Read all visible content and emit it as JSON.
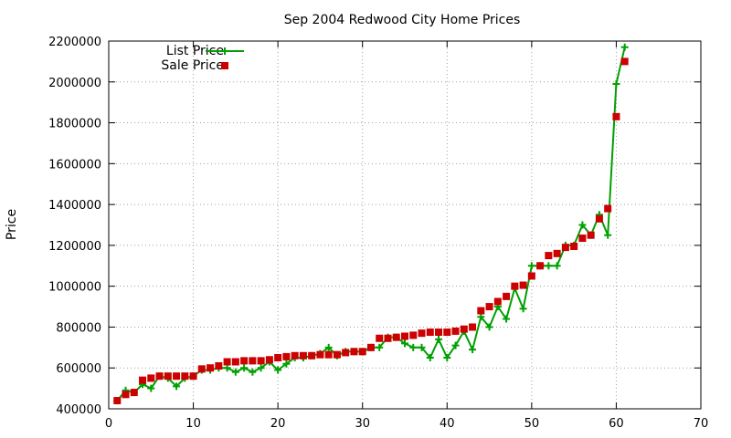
{
  "chart_data": {
    "type": "line",
    "title": "Sep 2004 Redwood City Home Prices",
    "xlabel": "",
    "ylabel": "Price",
    "xlim": [
      0,
      70
    ],
    "ylim": [
      400000,
      2200000
    ],
    "x_ticks": [
      0,
      10,
      20,
      30,
      40,
      50,
      60,
      70
    ],
    "y_ticks": [
      400000,
      600000,
      800000,
      1000000,
      1200000,
      1400000,
      1600000,
      1800000,
      2000000,
      2200000
    ],
    "grid": true,
    "legend_position": "top-left",
    "series": [
      {
        "name": "List Price",
        "style": "lines+points",
        "color": "#00a000",
        "values": [
          [
            1,
            440000
          ],
          [
            2,
            490000
          ],
          [
            3,
            480000
          ],
          [
            4,
            520000
          ],
          [
            5,
            500000
          ],
          [
            6,
            560000
          ],
          [
            7,
            550000
          ],
          [
            8,
            510000
          ],
          [
            9,
            550000
          ],
          [
            10,
            560000
          ],
          [
            11,
            590000
          ],
          [
            12,
            590000
          ],
          [
            13,
            600000
          ],
          [
            14,
            600000
          ],
          [
            15,
            580000
          ],
          [
            16,
            600000
          ],
          [
            17,
            580000
          ],
          [
            18,
            600000
          ],
          [
            19,
            630000
          ],
          [
            20,
            590000
          ],
          [
            21,
            620000
          ],
          [
            22,
            650000
          ],
          [
            23,
            650000
          ],
          [
            24,
            660000
          ],
          [
            25,
            670000
          ],
          [
            26,
            700000
          ],
          [
            27,
            660000
          ],
          [
            28,
            680000
          ],
          [
            29,
            680000
          ],
          [
            30,
            680000
          ],
          [
            31,
            700000
          ],
          [
            32,
            700000
          ],
          [
            33,
            750000
          ],
          [
            34,
            750000
          ],
          [
            35,
            720000
          ],
          [
            36,
            700000
          ],
          [
            37,
            700000
          ],
          [
            38,
            650000
          ],
          [
            39,
            740000
          ],
          [
            40,
            650000
          ],
          [
            41,
            710000
          ],
          [
            42,
            780000
          ],
          [
            43,
            690000
          ],
          [
            44,
            850000
          ],
          [
            45,
            800000
          ],
          [
            46,
            900000
          ],
          [
            47,
            840000
          ],
          [
            48,
            990000
          ],
          [
            49,
            890000
          ],
          [
            50,
            1100000
          ],
          [
            51,
            1100000
          ],
          [
            52,
            1100000
          ],
          [
            53,
            1100000
          ],
          [
            54,
            1200000
          ],
          [
            55,
            1200000
          ],
          [
            56,
            1300000
          ],
          [
            57,
            1250000
          ],
          [
            58,
            1350000
          ],
          [
            59,
            1250000
          ],
          [
            60,
            1990000
          ],
          [
            61,
            2170000
          ]
        ]
      },
      {
        "name": "Sale Price",
        "style": "points",
        "color": "#cc0000",
        "values": [
          [
            1,
            440000
          ],
          [
            2,
            470000
          ],
          [
            3,
            480000
          ],
          [
            4,
            540000
          ],
          [
            5,
            550000
          ],
          [
            6,
            560000
          ],
          [
            7,
            560000
          ],
          [
            8,
            560000
          ],
          [
            9,
            560000
          ],
          [
            10,
            560000
          ],
          [
            11,
            595000
          ],
          [
            12,
            600000
          ],
          [
            13,
            610000
          ],
          [
            14,
            630000
          ],
          [
            15,
            630000
          ],
          [
            16,
            635000
          ],
          [
            17,
            635000
          ],
          [
            18,
            635000
          ],
          [
            19,
            640000
          ],
          [
            20,
            650000
          ],
          [
            21,
            655000
          ],
          [
            22,
            660000
          ],
          [
            23,
            660000
          ],
          [
            24,
            660000
          ],
          [
            25,
            665000
          ],
          [
            26,
            665000
          ],
          [
            27,
            665000
          ],
          [
            28,
            675000
          ],
          [
            29,
            680000
          ],
          [
            30,
            680000
          ],
          [
            31,
            700000
          ],
          [
            32,
            745000
          ],
          [
            33,
            745000
          ],
          [
            34,
            750000
          ],
          [
            35,
            755000
          ],
          [
            36,
            760000
          ],
          [
            37,
            770000
          ],
          [
            38,
            775000
          ],
          [
            39,
            775000
          ],
          [
            40,
            775000
          ],
          [
            41,
            780000
          ],
          [
            42,
            790000
          ],
          [
            43,
            800000
          ],
          [
            44,
            880000
          ],
          [
            45,
            900000
          ],
          [
            46,
            925000
          ],
          [
            47,
            950000
          ],
          [
            48,
            1000000
          ],
          [
            49,
            1005000
          ],
          [
            50,
            1050000
          ],
          [
            51,
            1100000
          ],
          [
            52,
            1150000
          ],
          [
            53,
            1160000
          ],
          [
            54,
            1190000
          ],
          [
            55,
            1195000
          ],
          [
            56,
            1235000
          ],
          [
            57,
            1250000
          ],
          [
            58,
            1330000
          ],
          [
            59,
            1380000
          ],
          [
            60,
            1830000
          ],
          [
            61,
            2100000
          ]
        ]
      }
    ]
  }
}
